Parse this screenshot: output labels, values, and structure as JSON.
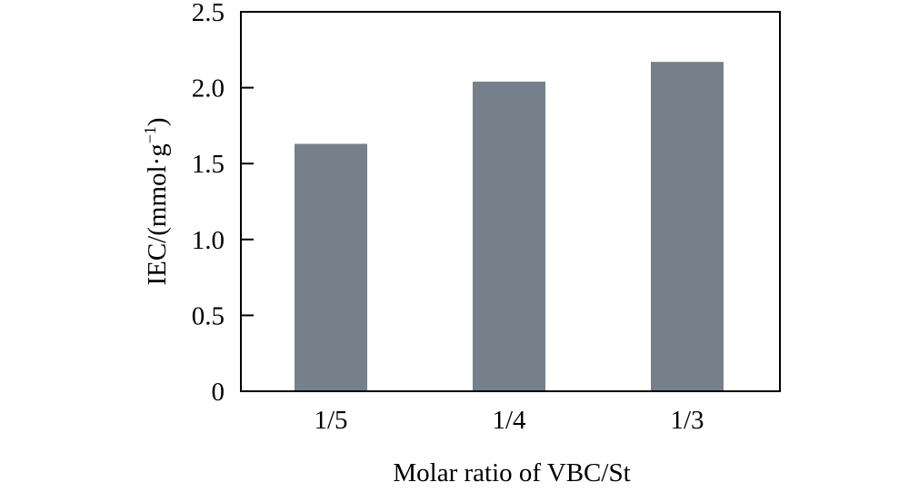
{
  "chart_data": {
    "type": "bar",
    "categories": [
      "1/5",
      "1/4",
      "1/3"
    ],
    "values": [
      1.63,
      2.04,
      2.17
    ],
    "title": "",
    "xlabel": "Molar ratio of VBC/St",
    "ylabel": "IEC/(mmol·g",
    "ylabel_sup": "−1",
    "ylabel_close": ")",
    "ylim": [
      0,
      2.5
    ],
    "yticks": [
      0,
      0.5,
      1.0,
      1.5,
      2.0,
      2.5
    ],
    "ytick_labels": [
      "0",
      "0.5",
      "1.0",
      "1.5",
      "2.0",
      "2.5"
    ],
    "grid": false,
    "bar_color": "#75808a"
  }
}
